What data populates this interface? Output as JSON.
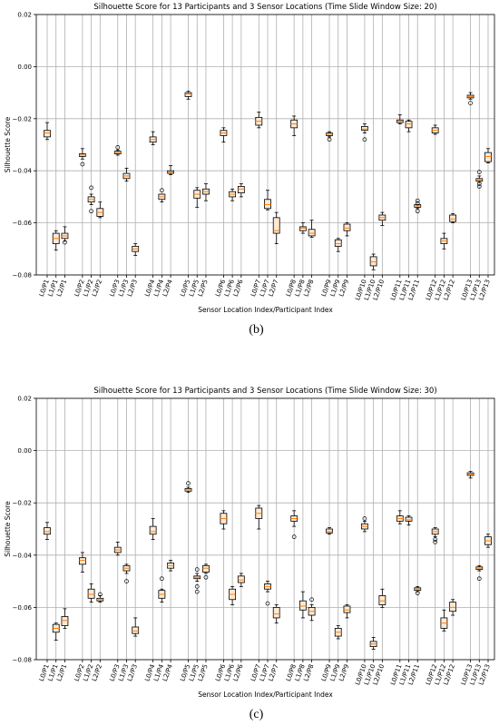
{
  "chart_data": [
    {
      "type": "box",
      "caption": "(b)",
      "title": "Silhouette Score for 13 Participants and 3 Sensor Locations (Time Slide Window Size: 20)",
      "xlabel": "Sensor Location Index/Participant Index",
      "ylabel": "Silhouette Score",
      "ylim": [
        -0.08,
        0.02
      ],
      "yticks": [
        0.02,
        {
          "value": 0,
          "label": "0.00"
        },
        {
          "value": -0.02,
          "label": "−0.02"
        },
        {
          "value": -0.04,
          "label": "−0.04"
        },
        {
          "value": -0.06,
          "label": "−0.06"
        },
        {
          "value": -0.08,
          "label": "−0.08"
        }
      ],
      "grid": true,
      "box_color": "#fde9d3",
      "median_color": "#ff7f0e",
      "categories": [
        "L0/P1",
        "L1/P1",
        "L2/P1",
        "L0/P2",
        "L1/P2",
        "L2/P2",
        "L0/P3",
        "L1/P3",
        "L2/P3",
        "L0/P4",
        "L1/P4",
        "L2/P4",
        "L0/P5",
        "L1/P5",
        "L2/P5",
        "L0/P6",
        "L1/P6",
        "L2/P6",
        "L0/P7",
        "L1/P7",
        "L2/P7",
        "L0/P8",
        "L1/P8",
        "L2/P8",
        "L0/P9",
        "L1/P9",
        "L2/P9",
        "L0/P10",
        "L1/P10",
        "L2/P10",
        "L0/P11",
        "L1/P11",
        "L2/P11",
        "L0/P12",
        "L1/P12",
        "L2/P12",
        "L0/P13",
        "L1/P13",
        "L2/P13"
      ],
      "boxes": [
        {
          "median": -0.0255,
          "q1": -0.027,
          "q3": -0.0245,
          "low": -0.028,
          "high": -0.0215
        },
        {
          "median": -0.066,
          "q1": -0.068,
          "q3": -0.064,
          "low": -0.0705,
          "high": -0.063
        },
        {
          "median": -0.065,
          "q1": -0.066,
          "q3": -0.064,
          "low": -0.067,
          "high": -0.0615,
          "fliers": [
            -0.0675
          ]
        },
        {
          "median": -0.034,
          "q1": -0.0345,
          "q3": -0.0335,
          "low": -0.0355,
          "high": -0.0315,
          "fliers": [
            -0.0375
          ]
        },
        {
          "median": -0.051,
          "q1": -0.052,
          "q3": -0.05,
          "low": -0.053,
          "high": -0.049,
          "fliers": [
            -0.0465,
            -0.0555
          ]
        },
        {
          "median": -0.056,
          "q1": -0.0575,
          "q3": -0.0545,
          "low": -0.058,
          "high": -0.052
        },
        {
          "median": -0.033,
          "q1": -0.0335,
          "q3": -0.0325,
          "low": -0.034,
          "high": -0.032,
          "fliers": [
            -0.031
          ]
        },
        {
          "median": -0.042,
          "q1": -0.043,
          "q3": -0.041,
          "low": -0.044,
          "high": -0.039
        },
        {
          "median": -0.07,
          "q1": -0.071,
          "q3": -0.069,
          "low": -0.0725,
          "high": -0.068
        },
        {
          "median": -0.028,
          "q1": -0.029,
          "q3": -0.027,
          "low": -0.03,
          "high": -0.025
        },
        {
          "median": -0.05,
          "q1": -0.051,
          "q3": -0.049,
          "low": -0.052,
          "high": -0.049,
          "fliers": [
            -0.0475
          ]
        },
        {
          "median": -0.0405,
          "q1": -0.041,
          "q3": -0.04,
          "low": -0.0415,
          "high": -0.038
        },
        {
          "median": -0.0105,
          "q1": -0.0115,
          "q3": -0.01,
          "low": -0.0125,
          "high": -0.0095
        },
        {
          "median": -0.049,
          "q1": -0.0505,
          "q3": -0.0475,
          "low": -0.054,
          "high": -0.0465
        },
        {
          "median": -0.048,
          "q1": -0.049,
          "q3": -0.047,
          "low": -0.0515,
          "high": -0.045
        },
        {
          "median": -0.0255,
          "q1": -0.0265,
          "q3": -0.0245,
          "low": -0.029,
          "high": -0.0235
        },
        {
          "median": -0.049,
          "q1": -0.05,
          "q3": -0.048,
          "low": -0.0515,
          "high": -0.047
        },
        {
          "median": -0.047,
          "q1": -0.0485,
          "q3": -0.046,
          "low": -0.05,
          "high": -0.045
        },
        {
          "median": -0.021,
          "q1": -0.0225,
          "q3": -0.0195,
          "low": -0.0235,
          "high": -0.0175
        },
        {
          "median": -0.053,
          "q1": -0.0545,
          "q3": -0.051,
          "low": -0.055,
          "high": -0.0475
        },
        {
          "median": -0.063,
          "q1": -0.064,
          "q3": -0.058,
          "low": -0.068,
          "high": -0.056
        },
        {
          "median": -0.022,
          "q1": -0.0235,
          "q3": -0.0205,
          "low": -0.0265,
          "high": -0.019
        },
        {
          "median": -0.062,
          "q1": -0.063,
          "q3": -0.0615,
          "low": -0.064,
          "high": -0.06
        },
        {
          "median": -0.064,
          "q1": -0.065,
          "q3": -0.0625,
          "low": -0.0655,
          "high": -0.059
        },
        {
          "median": -0.026,
          "q1": -0.0265,
          "q3": -0.0255,
          "low": -0.027,
          "high": -0.025,
          "fliers": [
            -0.028
          ]
        },
        {
          "median": -0.068,
          "q1": -0.069,
          "q3": -0.0665,
          "low": -0.071,
          "high": -0.066
        },
        {
          "median": -0.062,
          "q1": -0.063,
          "q3": -0.0605,
          "low": -0.065,
          "high": -0.06
        },
        {
          "median": -0.024,
          "q1": -0.0245,
          "q3": -0.023,
          "low": -0.0255,
          "high": -0.022,
          "fliers": [
            -0.028
          ]
        },
        {
          "median": -0.075,
          "q1": -0.0765,
          "q3": -0.073,
          "low": -0.078,
          "high": -0.072
        },
        {
          "median": -0.058,
          "q1": -0.059,
          "q3": -0.057,
          "low": -0.061,
          "high": -0.056
        },
        {
          "median": -0.021,
          "q1": -0.0215,
          "q3": -0.0205,
          "low": -0.022,
          "high": -0.0185
        },
        {
          "median": -0.022,
          "q1": -0.0235,
          "q3": -0.021,
          "low": -0.025,
          "high": -0.0205
        },
        {
          "median": -0.0535,
          "q1": -0.054,
          "q3": -0.053,
          "low": -0.0545,
          "high": -0.053,
          "fliers": [
            -0.0515,
            -0.0525,
            -0.0555
          ]
        },
        {
          "median": -0.0245,
          "q1": -0.0255,
          "q3": -0.0235,
          "low": -0.026,
          "high": -0.0225
        },
        {
          "median": -0.067,
          "q1": -0.068,
          "q3": -0.066,
          "low": -0.07,
          "high": -0.064
        },
        {
          "median": -0.0585,
          "q1": -0.0595,
          "q3": -0.057,
          "low": -0.06,
          "high": -0.0565
        },
        {
          "median": -0.0115,
          "q1": -0.012,
          "q3": -0.011,
          "low": -0.0125,
          "high": -0.01,
          "fliers": [
            -0.014
          ]
        },
        {
          "median": -0.0435,
          "q1": -0.044,
          "q3": -0.043,
          "low": -0.0445,
          "high": -0.042,
          "fliers": [
            -0.0405,
            -0.045,
            -0.046
          ]
        },
        {
          "median": -0.0345,
          "q1": -0.0365,
          "q3": -0.033,
          "low": -0.037,
          "high": -0.0315
        }
      ]
    },
    {
      "type": "box",
      "caption": "(c)",
      "title": "Silhouette Score for 13 Participants and 3 Sensor Locations (Time Slide Window Size: 30)",
      "xlabel": "Sensor Location Index/Participant Index",
      "ylabel": "Silhouette Score",
      "ylim": [
        -0.08,
        0.02
      ],
      "yticks": [
        0.02,
        {
          "value": 0,
          "label": "0.00"
        },
        {
          "value": -0.02,
          "label": "−0.02"
        },
        {
          "value": -0.04,
          "label": "−0.04"
        },
        {
          "value": -0.06,
          "label": "−0.06"
        },
        {
          "value": -0.08,
          "label": "−0.08"
        }
      ],
      "grid": true,
      "box_color": "#fde9d3",
      "median_color": "#ff7f0e",
      "categories": [
        "L0/P1",
        "L1/P1",
        "L2/P1",
        "L0/P2",
        "L1/P2",
        "L2/P2",
        "L0/P3",
        "L1/P3",
        "L2/P3",
        "L0/P4",
        "L1/P4",
        "L2/P4",
        "L0/P5",
        "L1/P5",
        "L2/P5",
        "L0/P6",
        "L1/P6",
        "L2/P6",
        "L0/P7",
        "L1/P7",
        "L2/P7",
        "L0/P8",
        "L1/P8",
        "L2/P8",
        "L0/P9",
        "L1/P9",
        "L2/P9",
        "L0/P10",
        "L1/P10",
        "L2/P10",
        "L0/P11",
        "L1/P11",
        "L2/P11",
        "L0/P12",
        "L1/P12",
        "L2/P12",
        "L0/P13",
        "L1/P13",
        "L2/P13"
      ],
      "boxes": [
        {
          "median": -0.031,
          "q1": -0.032,
          "q3": -0.0295,
          "low": -0.034,
          "high": -0.0275
        },
        {
          "median": -0.068,
          "q1": -0.0695,
          "q3": -0.0665,
          "low": -0.0725,
          "high": -0.066
        },
        {
          "median": -0.065,
          "q1": -0.067,
          "q3": -0.0635,
          "low": -0.068,
          "high": -0.0605
        },
        {
          "median": -0.042,
          "q1": -0.0435,
          "q3": -0.041,
          "low": -0.0465,
          "high": -0.039
        },
        {
          "median": -0.055,
          "q1": -0.0565,
          "q3": -0.053,
          "low": -0.058,
          "high": -0.051
        },
        {
          "median": -0.057,
          "q1": -0.0575,
          "q3": -0.0565,
          "low": -0.058,
          "high": -0.0555,
          "fliers": [
            -0.055
          ]
        },
        {
          "median": -0.038,
          "q1": -0.039,
          "q3": -0.037,
          "low": -0.04,
          "high": -0.035
        },
        {
          "median": -0.045,
          "q1": -0.046,
          "q3": -0.044,
          "low": -0.047,
          "high": -0.0435,
          "fliers": [
            -0.05
          ]
        },
        {
          "median": -0.069,
          "q1": -0.07,
          "q3": -0.0675,
          "low": -0.071,
          "high": -0.064
        },
        {
          "median": -0.031,
          "q1": -0.032,
          "q3": -0.029,
          "low": -0.034,
          "high": -0.026
        },
        {
          "median": -0.055,
          "q1": -0.0565,
          "q3": -0.0535,
          "low": -0.058,
          "high": -0.053,
          "fliers": [
            -0.049
          ]
        },
        {
          "median": -0.044,
          "q1": -0.045,
          "q3": -0.043,
          "low": -0.046,
          "high": -0.042
        },
        {
          "median": -0.015,
          "q1": -0.0155,
          "q3": -0.0145,
          "low": -0.016,
          "high": -0.014,
          "fliers": [
            -0.0125
          ]
        },
        {
          "median": -0.0485,
          "q1": -0.049,
          "q3": -0.048,
          "low": -0.05,
          "high": -0.047,
          "fliers": [
            -0.0455,
            -0.052,
            -0.054
          ]
        },
        {
          "median": -0.045,
          "q1": -0.0465,
          "q3": -0.044,
          "low": -0.047,
          "high": -0.0435,
          "fliers": [
            -0.0485
          ]
        },
        {
          "median": -0.026,
          "q1": -0.028,
          "q3": -0.024,
          "low": -0.03,
          "high": -0.023
        },
        {
          "median": -0.055,
          "q1": -0.057,
          "q3": -0.053,
          "low": -0.059,
          "high": -0.052
        },
        {
          "median": -0.0495,
          "q1": -0.0505,
          "q3": -0.048,
          "low": -0.052,
          "high": -0.047
        },
        {
          "median": -0.024,
          "q1": -0.026,
          "q3": -0.022,
          "low": -0.03,
          "high": -0.021
        },
        {
          "median": -0.052,
          "q1": -0.053,
          "q3": -0.051,
          "low": -0.054,
          "high": -0.05,
          "fliers": [
            -0.0585
          ]
        },
        {
          "median": -0.0625,
          "q1": -0.064,
          "q3": -0.06,
          "low": -0.066,
          "high": -0.059
        },
        {
          "median": -0.026,
          "q1": -0.027,
          "q3": -0.025,
          "low": -0.029,
          "high": -0.023,
          "fliers": [
            -0.033
          ]
        },
        {
          "median": -0.0595,
          "q1": -0.061,
          "q3": -0.0575,
          "low": -0.064,
          "high": -0.054
        },
        {
          "median": -0.0615,
          "q1": -0.063,
          "q3": -0.06,
          "low": -0.065,
          "high": -0.059,
          "fliers": [
            -0.057
          ]
        },
        {
          "median": -0.031,
          "q1": -0.0315,
          "q3": -0.03,
          "low": -0.032,
          "high": -0.0295
        },
        {
          "median": -0.0695,
          "q1": -0.071,
          "q3": -0.068,
          "low": -0.072,
          "high": -0.067
        },
        {
          "median": -0.061,
          "q1": -0.062,
          "q3": -0.0595,
          "low": -0.064,
          "high": -0.059
        },
        {
          "median": -0.029,
          "q1": -0.03,
          "q3": -0.028,
          "low": -0.031,
          "high": -0.027,
          "fliers": [
            -0.026
          ]
        },
        {
          "median": -0.074,
          "q1": -0.075,
          "q3": -0.073,
          "low": -0.076,
          "high": -0.0715
        },
        {
          "median": -0.0575,
          "q1": -0.059,
          "q3": -0.0555,
          "low": -0.06,
          "high": -0.053
        },
        {
          "median": -0.026,
          "q1": -0.027,
          "q3": -0.025,
          "low": -0.028,
          "high": -0.023
        },
        {
          "median": -0.0265,
          "q1": -0.027,
          "q3": -0.0255,
          "low": -0.0285,
          "high": -0.025
        },
        {
          "median": -0.053,
          "q1": -0.0535,
          "q3": -0.0525,
          "low": -0.054,
          "high": -0.052,
          "fliers": [
            -0.0545
          ]
        },
        {
          "median": -0.031,
          "q1": -0.032,
          "q3": -0.03,
          "low": -0.033,
          "high": -0.0295,
          "fliers": [
            -0.034,
            -0.035
          ]
        },
        {
          "median": -0.066,
          "q1": -0.068,
          "q3": -0.064,
          "low": -0.069,
          "high": -0.061
        },
        {
          "median": -0.06,
          "q1": -0.0615,
          "q3": -0.058,
          "low": -0.063,
          "high": -0.057
        },
        {
          "median": -0.009,
          "q1": -0.0095,
          "q3": -0.0085,
          "low": -0.0105,
          "high": -0.008
        },
        {
          "median": -0.045,
          "q1": -0.0455,
          "q3": -0.0445,
          "low": -0.046,
          "high": -0.044,
          "fliers": [
            -0.049
          ]
        },
        {
          "median": -0.0345,
          "q1": -0.036,
          "q3": -0.033,
          "low": -0.037,
          "high": -0.032
        }
      ]
    }
  ]
}
